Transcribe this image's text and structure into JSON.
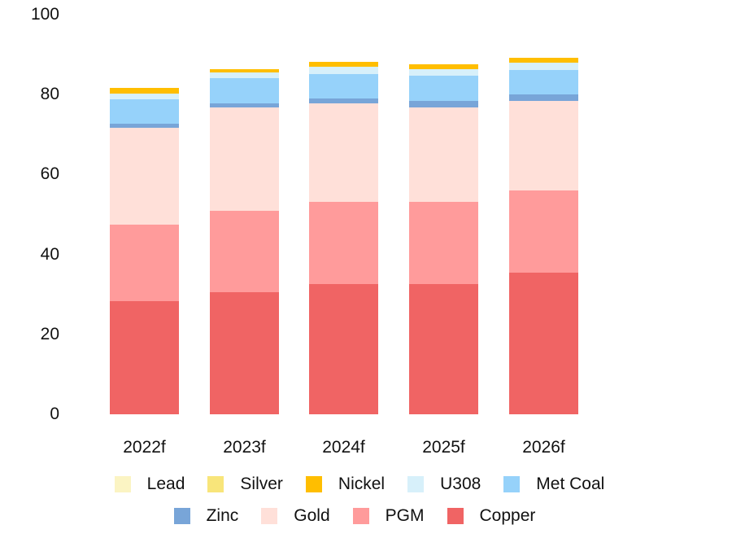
{
  "chart_data": {
    "type": "bar",
    "stacked": true,
    "title": "",
    "xlabel": "",
    "ylabel": "",
    "ylim": [
      0,
      100
    ],
    "yticks": [
      0,
      20,
      40,
      60,
      80,
      100
    ],
    "grid": false,
    "legend_position": "bottom",
    "categories": [
      "2022f",
      "2023f",
      "2024f",
      "2025f",
      "2026f"
    ],
    "series": [
      {
        "name": "Copper",
        "color": "#F06464",
        "values": [
          28.3,
          30.5,
          32.6,
          32.6,
          35.4
        ]
      },
      {
        "name": "PGM",
        "color": "#FF9B9B",
        "values": [
          19.2,
          20.4,
          20.6,
          20.6,
          20.6
        ]
      },
      {
        "name": "Gold",
        "color": "#FFE0D9",
        "values": [
          24.2,
          25.9,
          24.6,
          23.6,
          22.4
        ]
      },
      {
        "name": "Zinc",
        "color": "#78A5D8",
        "values": [
          1.0,
          1.0,
          1.2,
          1.6,
          1.6
        ]
      },
      {
        "name": "Met Coal",
        "color": "#96D2FA",
        "values": [
          6.1,
          6.3,
          6.1,
          6.3,
          6.1
        ]
      },
      {
        "name": "U308",
        "color": "#D7F0FA",
        "values": [
          1.4,
          1.4,
          1.8,
          1.6,
          1.8
        ]
      },
      {
        "name": "Nickel",
        "color": "#FFBE00",
        "values": [
          1.4,
          0.8,
          1.2,
          1.2,
          1.4
        ]
      },
      {
        "name": "Silver",
        "color": "#F8E57A",
        "values": [
          0,
          0,
          0,
          0,
          0
        ]
      },
      {
        "name": "Lead",
        "color": "#FBF4C3",
        "values": [
          0,
          0,
          0,
          0,
          0
        ]
      }
    ]
  },
  "legend": {
    "row1": [
      {
        "label": "Lead",
        "color": "#FBF4C3"
      },
      {
        "label": "Silver",
        "color": "#F8E57A"
      },
      {
        "label": "Nickel",
        "color": "#FFBE00"
      },
      {
        "label": "U308",
        "color": "#D7F0FA"
      },
      {
        "label": "Met Coal",
        "color": "#96D2FA"
      }
    ],
    "row2": [
      {
        "label": "Zinc",
        "color": "#78A5D8"
      },
      {
        "label": "Gold",
        "color": "#FFE0D9"
      },
      {
        "label": "PGM",
        "color": "#FF9B9B"
      },
      {
        "label": "Copper",
        "color": "#F06464"
      }
    ]
  }
}
